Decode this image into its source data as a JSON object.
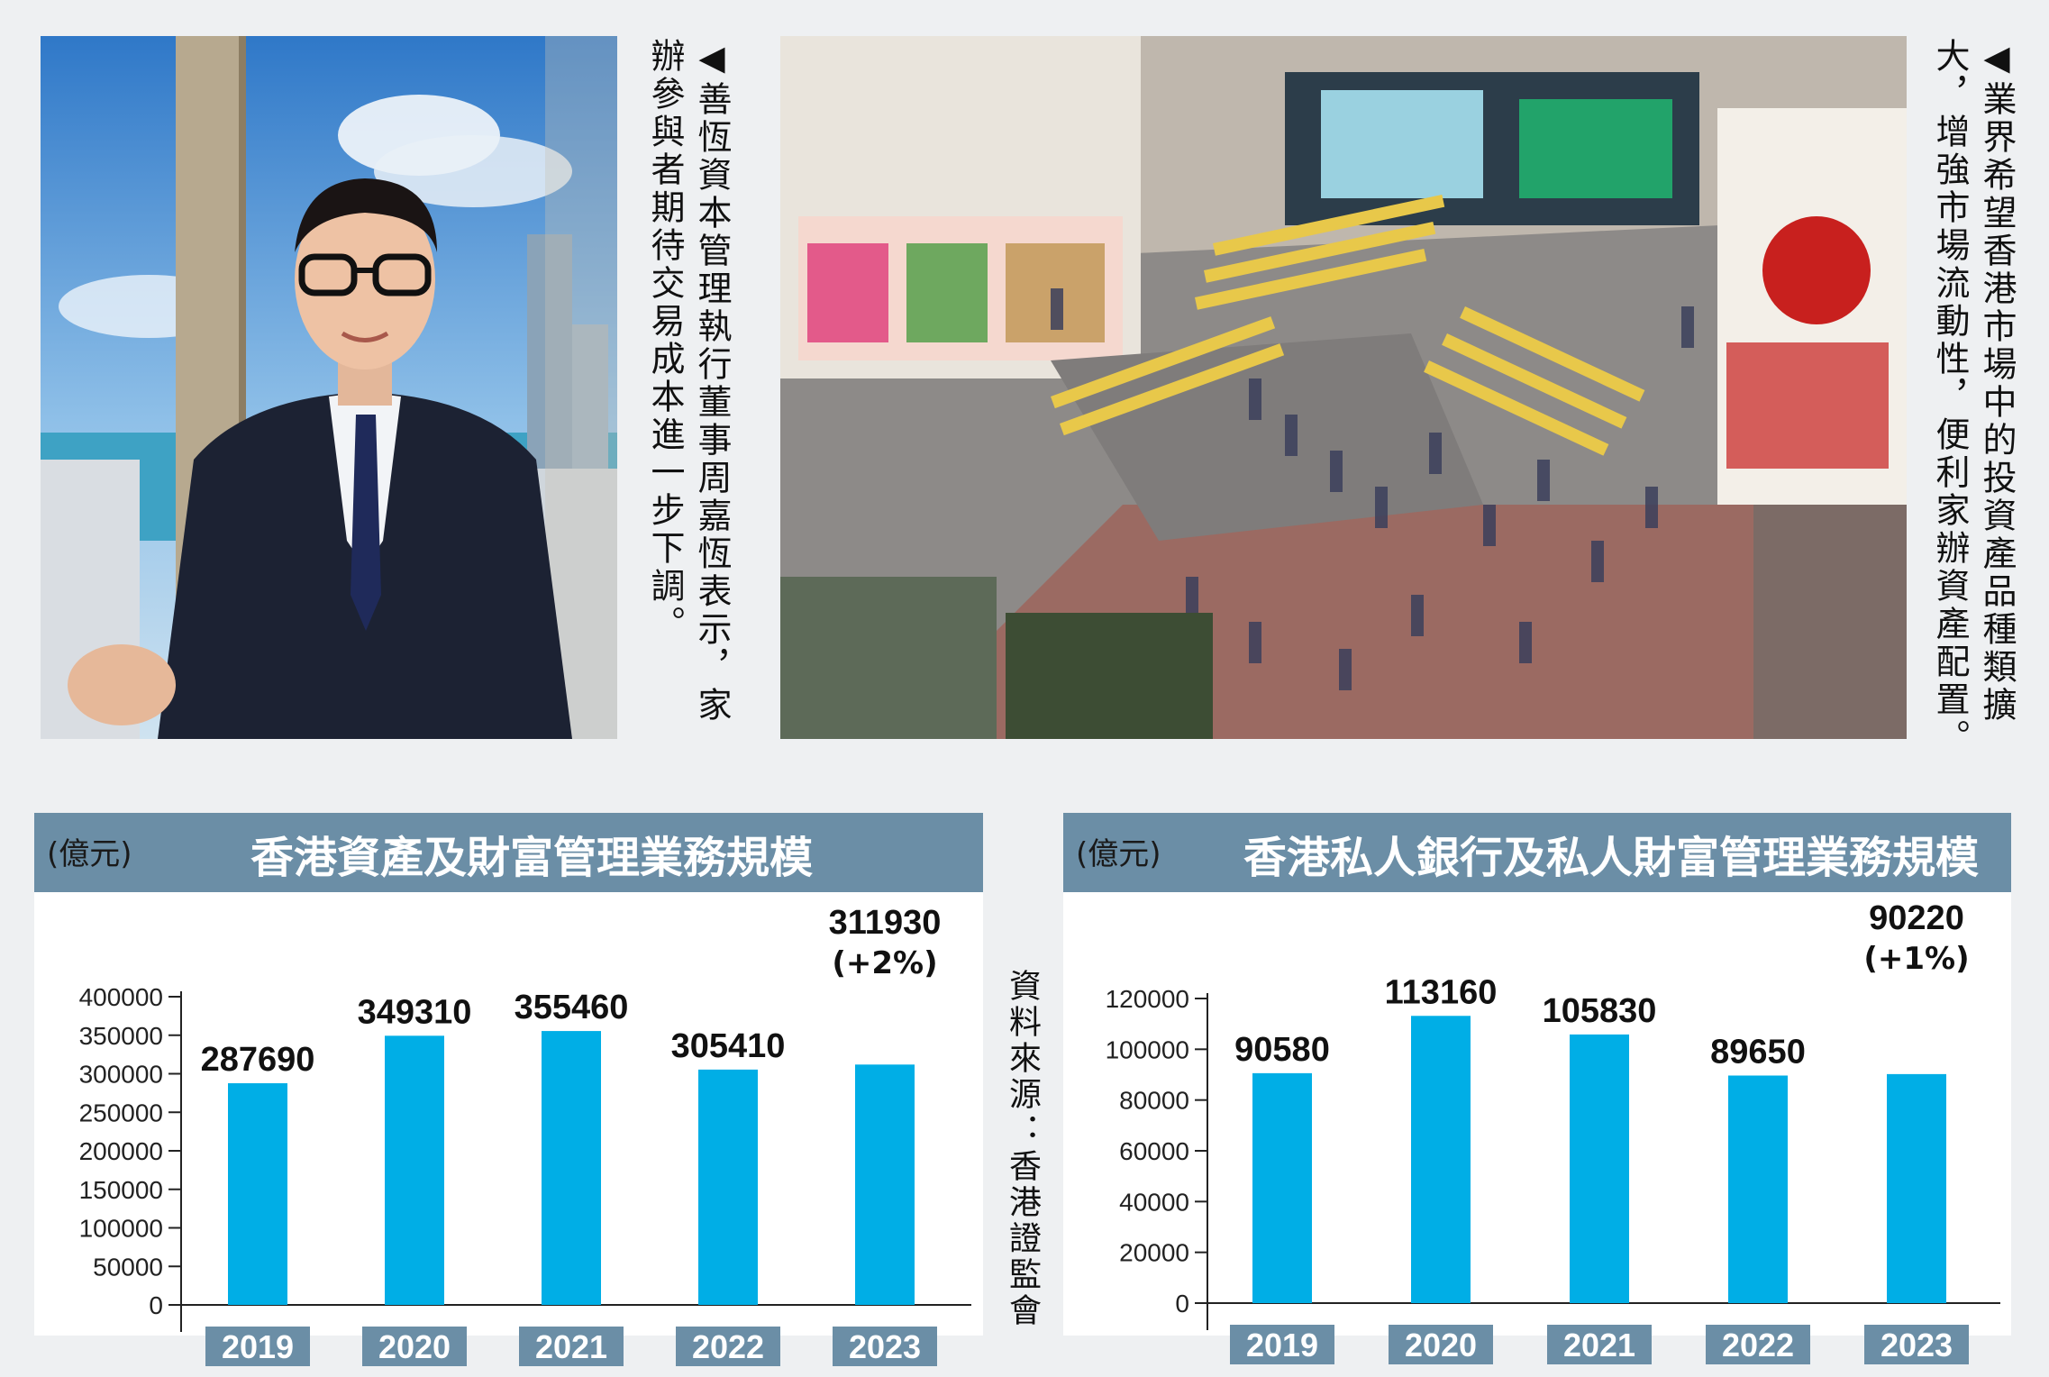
{
  "captions": {
    "left": "◀善恆資本管理執行董事周嘉恆表示，家辦參與者期待交易成本進一步下調。",
    "right": "◀業界希望香港市場中的投資產品種類擴大，增強市場流動性，便利家辦資產配置。"
  },
  "source": "資料來源：香港證監會",
  "colors": {
    "bar": "#00aee6",
    "header": "#6b8ea6",
    "panel_bg": "#ffffff",
    "page_bg": "#eef0f2"
  },
  "chart_data": [
    {
      "type": "bar",
      "title": "香港資產及財富管理業務規模",
      "unit": "(億元)",
      "categories": [
        "2019",
        "2020",
        "2021",
        "2022",
        "2023"
      ],
      "values": [
        287690,
        349310,
        355460,
        305410,
        311930
      ],
      "value_labels": [
        "287690",
        "349310",
        "355460",
        "305410",
        "311930"
      ],
      "notes": [
        "",
        "",
        "",
        "",
        "(+2%)"
      ],
      "ylim": [
        0,
        400000
      ],
      "yticks": [
        0,
        50000,
        100000,
        150000,
        200000,
        250000,
        300000,
        350000,
        400000
      ],
      "xlabel": "",
      "ylabel": ""
    },
    {
      "type": "bar",
      "title": "香港私人銀行及私人財富管理業務規模",
      "unit": "(億元)",
      "categories": [
        "2019",
        "2020",
        "2021",
        "2022",
        "2023"
      ],
      "values": [
        90580,
        113160,
        105830,
        89650,
        90220
      ],
      "value_labels": [
        "90580",
        "113160",
        "105830",
        "89650",
        "90220"
      ],
      "notes": [
        "",
        "",
        "",
        "",
        "(+1%)"
      ],
      "ylim": [
        0,
        120000
      ],
      "yticks": [
        0,
        20000,
        40000,
        60000,
        80000,
        100000,
        120000
      ],
      "xlabel": "",
      "ylabel": ""
    }
  ]
}
